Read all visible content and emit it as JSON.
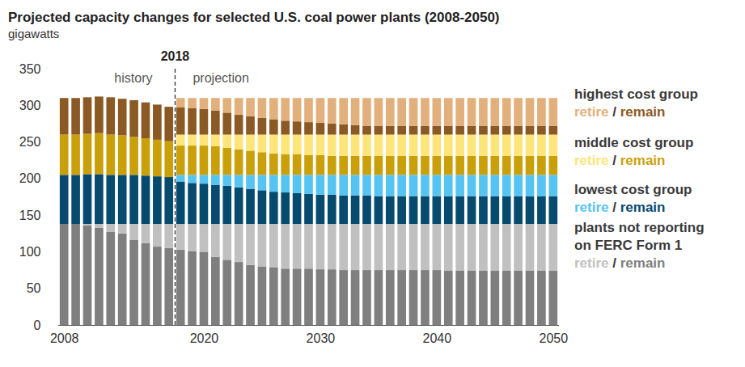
{
  "chart_data": {
    "type": "bar",
    "stacked": true,
    "title": "Projected capacity changes for selected U.S. coal power plants (2008-2050)",
    "subtitle": "gigawatts",
    "x": [
      2008,
      2009,
      2010,
      2011,
      2012,
      2013,
      2014,
      2015,
      2016,
      2017,
      2018,
      2019,
      2020,
      2021,
      2022,
      2023,
      2024,
      2025,
      2026,
      2027,
      2028,
      2029,
      2030,
      2031,
      2032,
      2033,
      2034,
      2035,
      2036,
      2037,
      2038,
      2039,
      2040,
      2041,
      2042,
      2043,
      2044,
      2045,
      2046,
      2047,
      2048,
      2049,
      2050
    ],
    "xlim": [
      2007.5,
      2050.5
    ],
    "xticks": [
      2008,
      2020,
      2030,
      2040,
      2050
    ],
    "ylim": [
      0,
      350
    ],
    "yticks": [
      0,
      50,
      100,
      150,
      200,
      250,
      300,
      350
    ],
    "grid": false,
    "divider": {
      "x": 2017.5,
      "label": "2018",
      "before": "history",
      "after": "projection"
    },
    "legend_separator": "/",
    "series": [
      {
        "name": "remain",
        "group": "plants not reporting\non FERC Form 1",
        "color": "#7f7f7f",
        "values": [
          138,
          138,
          136,
          133,
          127,
          125,
          116,
          112,
          107,
          105,
          103,
          101,
          100,
          93,
          89,
          86,
          82,
          80,
          79,
          77,
          77,
          77,
          76,
          76,
          75,
          75,
          75,
          75,
          75,
          75,
          75,
          75,
          75,
          74,
          74,
          74,
          74,
          74,
          74,
          74,
          74,
          74,
          74
        ]
      },
      {
        "name": "retire",
        "group": "plants not reporting\non FERC Form 1",
        "color": "#c0c0c0",
        "values": [
          0,
          0,
          2,
          5,
          11,
          13,
          22,
          26,
          31,
          33,
          35,
          37,
          38,
          45,
          49,
          52,
          56,
          58,
          59,
          61,
          61,
          61,
          62,
          62,
          63,
          63,
          63,
          63,
          63,
          63,
          63,
          63,
          63,
          64,
          64,
          64,
          64,
          64,
          64,
          64,
          64,
          64,
          64
        ]
      },
      {
        "name": "remain",
        "group": "lowest cost group",
        "color": "#064a6e",
        "values": [
          67,
          67,
          68,
          68,
          67,
          67,
          67,
          66,
          65,
          64,
          58,
          56,
          55,
          53,
          52,
          50,
          48,
          46,
          44,
          43,
          42,
          41,
          40,
          40,
          39,
          39,
          39,
          38,
          38,
          38,
          38,
          38,
          38,
          38,
          38,
          38,
          38,
          38,
          38,
          38,
          38,
          38,
          38
        ]
      },
      {
        "name": "retire",
        "group": "lowest cost group",
        "color": "#55c4f2",
        "values": [
          0,
          0,
          0,
          0,
          0,
          0,
          0,
          0,
          0,
          0,
          9,
          11,
          12,
          14,
          15,
          17,
          19,
          21,
          23,
          24,
          25,
          26,
          27,
          27,
          28,
          28,
          28,
          29,
          29,
          29,
          29,
          29,
          29,
          29,
          29,
          29,
          29,
          29,
          29,
          29,
          29,
          29,
          29
        ]
      },
      {
        "name": "remain",
        "group": "middle cost group",
        "color": "#c9a00a",
        "values": [
          55,
          55,
          55,
          56,
          55,
          54,
          52,
          51,
          50,
          49,
          40,
          40,
          40,
          39,
          37,
          35,
          33,
          31,
          29,
          28,
          28,
          27,
          27,
          26,
          26,
          26,
          26,
          26,
          26,
          26,
          26,
          26,
          26,
          26,
          26,
          26,
          26,
          26,
          26,
          26,
          26,
          26,
          26
        ]
      },
      {
        "name": "retire",
        "group": "middle cost group",
        "color": "#fde57a",
        "values": [
          0,
          0,
          0,
          0,
          0,
          0,
          0,
          0,
          0,
          0,
          15,
          15,
          15,
          16,
          18,
          20,
          22,
          24,
          26,
          27,
          27,
          28,
          28,
          29,
          29,
          29,
          29,
          29,
          29,
          29,
          29,
          29,
          29,
          29,
          29,
          29,
          29,
          29,
          29,
          29,
          29,
          29,
          29
        ]
      },
      {
        "name": "remain",
        "group": "highest cost group",
        "color": "#8b5a24",
        "values": [
          50,
          50,
          50,
          50,
          51,
          50,
          50,
          49,
          48,
          47,
          37,
          36,
          35,
          33,
          30,
          27,
          25,
          23,
          21,
          19,
          18,
          17,
          16,
          15,
          14,
          13,
          12,
          12,
          12,
          12,
          12,
          12,
          12,
          12,
          12,
          12,
          12,
          12,
          12,
          12,
          12,
          12,
          12
        ]
      },
      {
        "name": "retire",
        "group": "highest cost group",
        "color": "#e2b07c",
        "values": [
          0,
          0,
          0,
          0,
          0,
          0,
          0,
          0,
          0,
          0,
          13,
          14,
          15,
          17,
          20,
          23,
          25,
          27,
          29,
          31,
          32,
          33,
          34,
          35,
          36,
          37,
          38,
          38,
          38,
          38,
          38,
          38,
          38,
          38,
          38,
          38,
          38,
          38,
          38,
          38,
          38,
          38,
          38
        ]
      }
    ]
  }
}
